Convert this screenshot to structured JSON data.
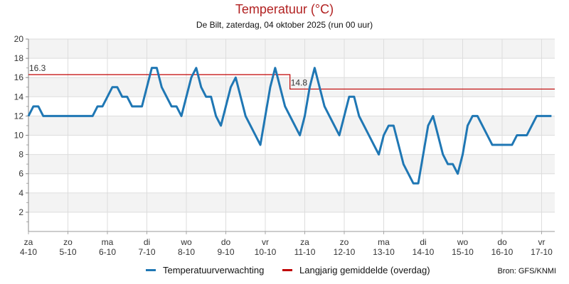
{
  "chart_data": {
    "type": "line",
    "title": "Temperatuur (°C)",
    "subtitle": "De Bilt, zaterdag, 04 oktober 2025 (run 00 uur)",
    "source": "Bron: GFS/KNMI",
    "ylim": [
      0,
      20
    ],
    "yticks": [
      2,
      4,
      6,
      8,
      10,
      12,
      14,
      16,
      18,
      20
    ],
    "grid": true,
    "legend_placement": "bottom",
    "x_start": "4-10 00:00",
    "x_step_hours": 3,
    "xticks": [
      {
        "day": "za",
        "date": "4-10"
      },
      {
        "day": "zo",
        "date": "5-10"
      },
      {
        "day": "ma",
        "date": "6-10"
      },
      {
        "day": "di",
        "date": "7-10"
      },
      {
        "day": "wo",
        "date": "8-10"
      },
      {
        "day": "do",
        "date": "9-10"
      },
      {
        "day": "vr",
        "date": "10-10"
      },
      {
        "day": "za",
        "date": "11-10"
      },
      {
        "day": "zo",
        "date": "12-10"
      },
      {
        "day": "ma",
        "date": "13-10"
      },
      {
        "day": "di",
        "date": "14-10"
      },
      {
        "day": "wo",
        "date": "15-10"
      },
      {
        "day": "do",
        "date": "16-10"
      },
      {
        "day": "vr",
        "date": "17-10"
      }
    ],
    "series": [
      {
        "name": "Temperatuurverwachting",
        "color": "#1f77b4",
        "values": [
          12,
          13,
          13,
          12,
          12,
          12,
          12,
          12,
          12,
          12,
          12,
          12,
          12,
          12,
          13,
          13,
          14,
          15,
          15,
          14,
          14,
          13,
          13,
          13,
          15,
          17,
          17,
          15,
          14,
          13,
          13,
          12,
          14,
          16,
          17,
          15,
          14,
          14,
          12,
          11,
          13,
          15,
          16,
          14,
          12,
          11,
          10,
          9,
          12,
          15,
          17,
          15,
          13,
          12,
          11,
          10,
          12,
          15,
          17,
          15,
          13,
          12,
          11,
          10,
          12,
          14,
          14,
          12,
          11,
          10,
          9,
          8,
          10,
          11,
          11,
          9,
          7,
          6,
          5,
          5,
          8,
          11,
          12,
          10,
          8,
          7,
          7,
          6,
          8,
          11,
          12,
          12,
          11,
          10,
          9,
          9,
          9,
          9,
          9,
          10,
          10,
          10,
          11,
          12,
          12,
          12,
          12
        ]
      },
      {
        "name": "Langjarig gemiddelde (overdag)",
        "color": "#c00000",
        "segments": [
          {
            "from": "4-10 00:00",
            "to": "10-10 12:00",
            "value": 16.3
          },
          {
            "from": "10-10 15:00",
            "to": "17-10 21:00",
            "value": 14.8
          }
        ],
        "labels": [
          "16.3",
          "14.8"
        ]
      }
    ]
  }
}
